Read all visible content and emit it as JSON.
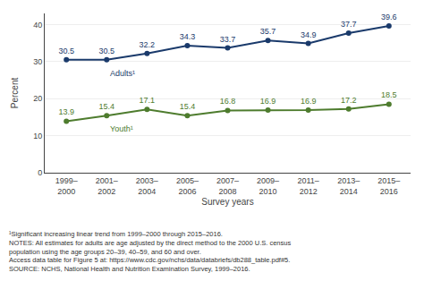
{
  "chart_data": {
    "type": "line",
    "categories": [
      "1999–\n2000",
      "2001–\n2002",
      "2003–\n2004",
      "2005–\n2006",
      "2007–\n2008",
      "2009–\n2010",
      "2011–\n2012",
      "2013–\n2014",
      "2015–\n2016"
    ],
    "series": [
      {
        "name": "Adults¹",
        "color": "#1a3a6b",
        "values": [
          30.5,
          30.5,
          32.2,
          34.3,
          33.7,
          35.7,
          34.9,
          37.7,
          39.6
        ]
      },
      {
        "name": "Youth¹",
        "color": "#4e7c2e",
        "values": [
          13.9,
          15.4,
          17.1,
          15.4,
          16.8,
          16.9,
          16.9,
          17.2,
          18.5
        ]
      }
    ],
    "xlabel": "Survey years",
    "ylabel": "Percent",
    "ylim": [
      0,
      43
    ],
    "yticks": [
      0,
      10,
      20,
      30,
      40
    ],
    "grid": true,
    "data_labels": true,
    "marker": "circle",
    "footnotes": [
      "¹Significant increasing linear trend from 1999–2000 through 2015–2016.",
      "NOTES: All estimates for adults are age adjusted by the direct method to the 2000 U.S. census population using the age groups 20–39, 40–59, and 60 and over.",
      "Access data table for Figure 5 at: https://www.cdc.gov/nchs/data/databriefs/db288_table.pdf#5.",
      "SOURCE: NCHS, National Health and Nutrition Examination Survey, 1999–2016."
    ]
  }
}
